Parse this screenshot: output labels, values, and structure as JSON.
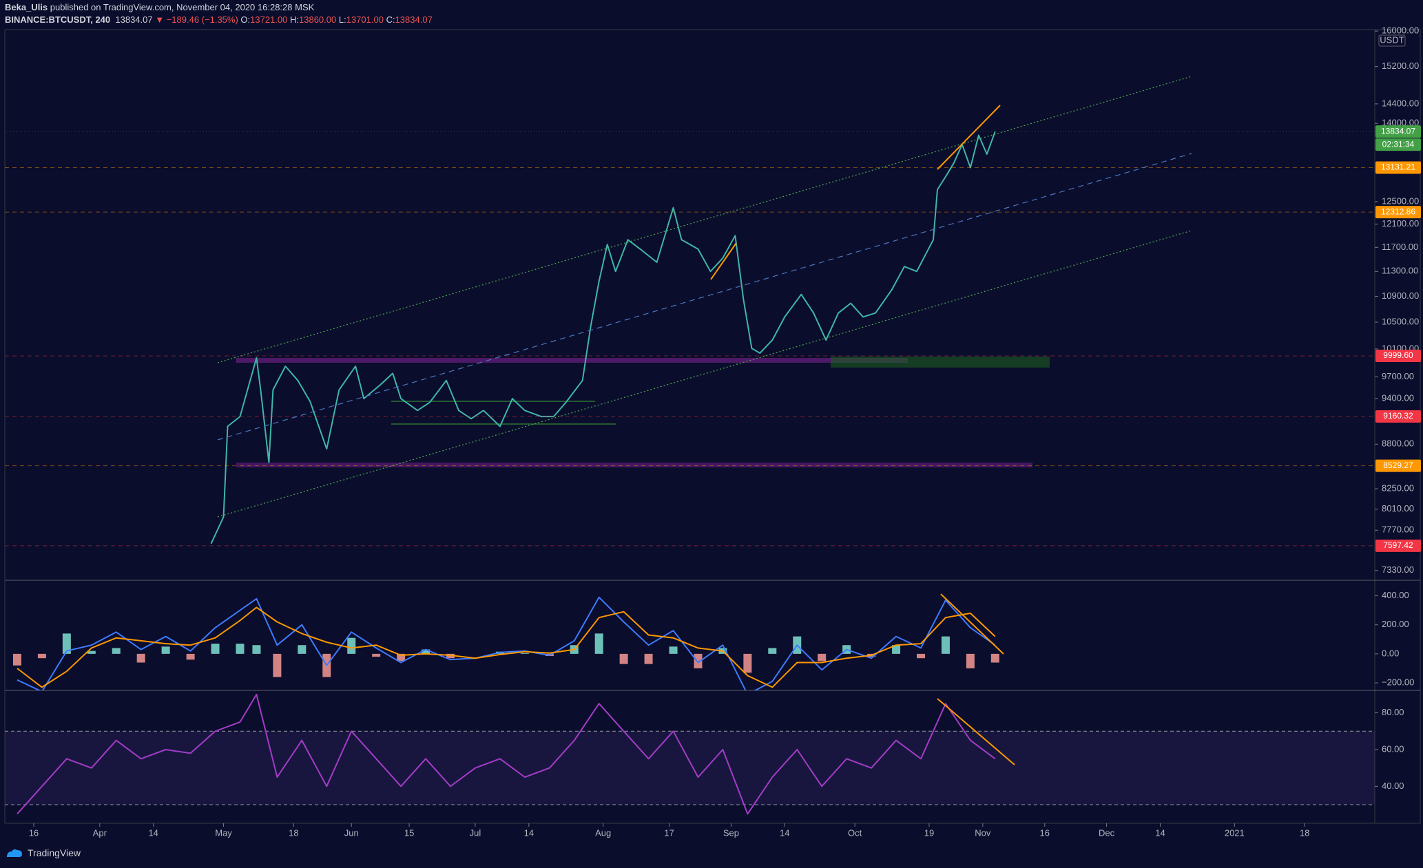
{
  "header": {
    "author": "Beka_Ulis",
    "published": "published on TradingView.com, November 04, 2020 16:28:28 MSK",
    "symbol": "BINANCE:BTCUSDT, 240",
    "last": "13834.07",
    "change": "▼ −189.46 (−1.35%)",
    "ohlc": [
      {
        "key": "O:",
        "value": "13721.00"
      },
      {
        "key": "H:",
        "value": "13860.00"
      },
      {
        "key": "L:",
        "value": "13701.00"
      },
      {
        "key": "C:",
        "value": "13834.07"
      }
    ]
  },
  "footer": {
    "brand": "TradingView"
  },
  "chart_data": [
    {
      "type": "line",
      "log_scale": true,
      "color": "#3fb6a8",
      "unit": "USDT",
      "xlim": [
        "2020-03-09",
        "2021-02-04"
      ],
      "ylim": [
        7227,
        16034
      ],
      "yticks": [
        {
          "value": 16000,
          "label": "16000.00"
        },
        {
          "value": 15200,
          "label": "15200.00"
        },
        {
          "value": 14400,
          "label": "14400.00"
        },
        {
          "value": 14000,
          "label": "14000.00"
        },
        {
          "value": 12500,
          "label": "12500.00"
        },
        {
          "value": 12100,
          "label": "12100.00"
        },
        {
          "value": 11700,
          "label": "11700.00"
        },
        {
          "value": 11300,
          "label": "11300.00"
        },
        {
          "value": 10900,
          "label": "10900.00"
        },
        {
          "value": 10500,
          "label": "10500.00"
        },
        {
          "value": 10100,
          "label": "10100.00"
        },
        {
          "value": 9700,
          "label": "9700.00"
        },
        {
          "value": 9400,
          "label": "9400.00"
        },
        {
          "value": 8800,
          "label": "8800.00"
        },
        {
          "value": 8250,
          "label": "8250.00"
        },
        {
          "value": 8010,
          "label": "8010.00"
        },
        {
          "value": 7770,
          "label": "7770.00"
        },
        {
          "value": 7330,
          "label": "7330.00"
        }
      ],
      "price_tags": [
        {
          "value": 13834.07,
          "label": "13834.07",
          "color": "#43a047",
          "countdown": "02:31:34"
        },
        {
          "value": 13131.21,
          "label": "13131.21",
          "color": "#ff9800"
        },
        {
          "value": 12312.86,
          "label": "12312.86",
          "color": "#ff9800"
        },
        {
          "value": 9999.6,
          "label": "9999.60",
          "color": "#f23645"
        },
        {
          "value": 9160.32,
          "label": "9160.32",
          "color": "#f23645"
        },
        {
          "value": 8529.27,
          "label": "8529.27",
          "color": "#ff9800"
        },
        {
          "value": 7597.42,
          "label": "7597.42",
          "color": "#f23645"
        }
      ],
      "x": [
        "2020-04-28",
        "2020-05-01",
        "2020-05-02",
        "2020-05-05",
        "2020-05-09",
        "2020-05-10",
        "2020-05-12",
        "2020-05-13",
        "2020-05-16",
        "2020-05-19",
        "2020-05-22",
        "2020-05-26",
        "2020-05-29",
        "2020-06-02",
        "2020-06-04",
        "2020-06-08",
        "2020-06-11",
        "2020-06-13",
        "2020-06-17",
        "2020-06-20",
        "2020-06-24",
        "2020-06-27",
        "2020-06-30",
        "2020-07-03",
        "2020-07-07",
        "2020-07-10",
        "2020-07-13",
        "2020-07-17",
        "2020-07-20",
        "2020-07-23",
        "2020-07-27",
        "2020-07-29",
        "2020-07-31",
        "2020-08-02",
        "2020-08-04",
        "2020-08-07",
        "2020-08-10",
        "2020-08-14",
        "2020-08-18",
        "2020-08-20",
        "2020-08-24",
        "2020-08-27",
        "2020-08-30",
        "2020-09-02",
        "2020-09-04",
        "2020-09-06",
        "2020-09-08",
        "2020-09-11",
        "2020-09-14",
        "2020-09-18",
        "2020-09-21",
        "2020-09-24",
        "2020-09-27",
        "2020-09-30",
        "2020-10-03",
        "2020-10-06",
        "2020-10-10",
        "2020-10-13",
        "2020-10-16",
        "2020-10-20",
        "2020-10-21",
        "2020-10-23",
        "2020-10-25",
        "2020-10-27",
        "2020-10-29",
        "2020-10-31",
        "2020-11-02",
        "2020-11-04"
      ],
      "values": [
        7620,
        7920,
        9030,
        9160,
        9970,
        9520,
        8570,
        9520,
        9850,
        9650,
        9360,
        8740,
        9520,
        9850,
        9400,
        9590,
        9750,
        9400,
        9240,
        9350,
        9650,
        9240,
        9130,
        9240,
        9030,
        9400,
        9240,
        9160,
        9160,
        9350,
        9650,
        10440,
        11140,
        11750,
        11300,
        11830,
        11670,
        11450,
        12390,
        11830,
        11670,
        11300,
        11520,
        11900,
        10850,
        10110,
        10040,
        10230,
        10580,
        10930,
        10640,
        10230,
        10640,
        10790,
        10580,
        10640,
        11010,
        11380,
        11300,
        11830,
        12720,
        12960,
        13220,
        13580,
        13130,
        13760,
        13390,
        13834.07
      ]
    },
    {
      "type": "line",
      "xlim": [
        "2020-03-09",
        "2021-02-04"
      ],
      "ylim": [
        -252,
        507
      ],
      "yticks": [
        {
          "value": 400,
          "label": "400.00"
        },
        {
          "value": 200,
          "label": "200.00"
        },
        {
          "value": 0,
          "label": "0.00"
        },
        {
          "value": -200,
          "label": "−200.00"
        }
      ],
      "x": [
        "2020-03-12",
        "2020-03-18",
        "2020-03-24",
        "2020-03-30",
        "2020-04-05",
        "2020-04-11",
        "2020-04-17",
        "2020-04-23",
        "2020-04-29",
        "2020-05-05",
        "2020-05-09",
        "2020-05-14",
        "2020-05-20",
        "2020-05-26",
        "2020-06-01",
        "2020-06-07",
        "2020-06-13",
        "2020-06-19",
        "2020-06-25",
        "2020-07-01",
        "2020-07-07",
        "2020-07-13",
        "2020-07-19",
        "2020-07-25",
        "2020-07-31",
        "2020-08-06",
        "2020-08-12",
        "2020-08-18",
        "2020-08-24",
        "2020-08-30",
        "2020-09-05",
        "2020-09-11",
        "2020-09-17",
        "2020-09-23",
        "2020-09-29",
        "2020-10-05",
        "2020-10-11",
        "2020-10-17",
        "2020-10-23",
        "2020-10-29",
        "2020-11-04"
      ],
      "series": [
        {
          "type": "bar",
          "color": "#7fe0d2",
          "negative_color": "#f59a93",
          "values": [
            -80,
            -30,
            140,
            20,
            40,
            -60,
            50,
            -40,
            70,
            70,
            60,
            -160,
            60,
            -160,
            110,
            -20,
            -50,
            30,
            -30,
            0,
            15,
            5,
            -15,
            60,
            140,
            -70,
            -70,
            50,
            -100,
            40,
            -130,
            40,
            120,
            -50,
            60,
            -20,
            60,
            -30,
            120,
            -100,
            -60
          ]
        },
        {
          "type": "line",
          "color": "#3d7bff",
          "values": [
            -180,
            -260,
            20,
            60,
            150,
            30,
            120,
            20,
            180,
            300,
            380,
            60,
            200,
            -80,
            150,
            40,
            -60,
            30,
            -40,
            -30,
            10,
            20,
            -10,
            90,
            390,
            220,
            60,
            160,
            -60,
            60,
            -280,
            -190,
            60,
            -110,
            30,
            -30,
            120,
            40,
            370,
            180,
            60
          ]
        },
        {
          "type": "line",
          "color": "#ff9800",
          "values": [
            -100,
            -230,
            -120,
            40,
            110,
            90,
            70,
            60,
            110,
            230,
            320,
            220,
            140,
            80,
            40,
            60,
            -10,
            0,
            -10,
            -30,
            -5,
            15,
            5,
            30,
            250,
            290,
            130,
            110,
            40,
            20,
            -150,
            -230,
            -60,
            -60,
            -30,
            -10,
            60,
            70,
            250,
            280,
            120
          ]
        }
      ]
    },
    {
      "type": "line",
      "color": "#a33cc7",
      "xlim": [
        "2020-03-09",
        "2021-02-04"
      ],
      "ylim": [
        19.9,
        92.2
      ],
      "yticks": [
        {
          "value": 80,
          "label": "80.00"
        },
        {
          "value": 60,
          "label": "60.00"
        },
        {
          "value": 40,
          "label": "40.00"
        }
      ],
      "hlines": [
        70,
        30
      ],
      "xticks": [
        {
          "value": "2020-03-16",
          "label": "16"
        },
        {
          "value": "2020-04-01",
          "label": "Apr"
        },
        {
          "value": "2020-04-14",
          "label": "14"
        },
        {
          "value": "2020-05-01",
          "label": "May"
        },
        {
          "value": "2020-05-18",
          "label": "18"
        },
        {
          "value": "2020-06-01",
          "label": "Jun"
        },
        {
          "value": "2020-06-15",
          "label": "15"
        },
        {
          "value": "2020-07-01",
          "label": "Jul"
        },
        {
          "value": "2020-07-14",
          "label": "14"
        },
        {
          "value": "2020-08-01",
          "label": "Aug"
        },
        {
          "value": "2020-08-17",
          "label": "17"
        },
        {
          "value": "2020-09-01",
          "label": "Sep"
        },
        {
          "value": "2020-09-14",
          "label": "14"
        },
        {
          "value": "2020-10-01",
          "label": "Oct"
        },
        {
          "value": "2020-10-19",
          "label": "19"
        },
        {
          "value": "2020-11-01",
          "label": "Nov"
        },
        {
          "value": "2020-11-16",
          "label": "16"
        },
        {
          "value": "2020-12-01",
          "label": "Dec"
        },
        {
          "value": "2020-12-14",
          "label": "14"
        },
        {
          "value": "2021-01-01",
          "label": "2021"
        },
        {
          "value": "2021-01-18",
          "label": "18"
        }
      ],
      "x": [
        "2020-03-12",
        "2020-03-18",
        "2020-03-24",
        "2020-03-30",
        "2020-04-05",
        "2020-04-11",
        "2020-04-17",
        "2020-04-23",
        "2020-04-29",
        "2020-05-05",
        "2020-05-09",
        "2020-05-14",
        "2020-05-20",
        "2020-05-26",
        "2020-06-01",
        "2020-06-07",
        "2020-06-13",
        "2020-06-19",
        "2020-06-25",
        "2020-07-01",
        "2020-07-07",
        "2020-07-13",
        "2020-07-19",
        "2020-07-25",
        "2020-07-31",
        "2020-08-06",
        "2020-08-12",
        "2020-08-18",
        "2020-08-24",
        "2020-08-30",
        "2020-09-05",
        "2020-09-11",
        "2020-09-17",
        "2020-09-23",
        "2020-09-29",
        "2020-10-05",
        "2020-10-11",
        "2020-10-17",
        "2020-10-23",
        "2020-10-29",
        "2020-11-04"
      ],
      "values": [
        25,
        40,
        55,
        50,
        65,
        55,
        60,
        58,
        70,
        75,
        90,
        45,
        65,
        40,
        70,
        55,
        40,
        55,
        40,
        50,
        55,
        45,
        50,
        65,
        85,
        70,
        55,
        70,
        45,
        60,
        25,
        45,
        60,
        40,
        55,
        50,
        65,
        55,
        85,
        65,
        55
      ]
    }
  ]
}
